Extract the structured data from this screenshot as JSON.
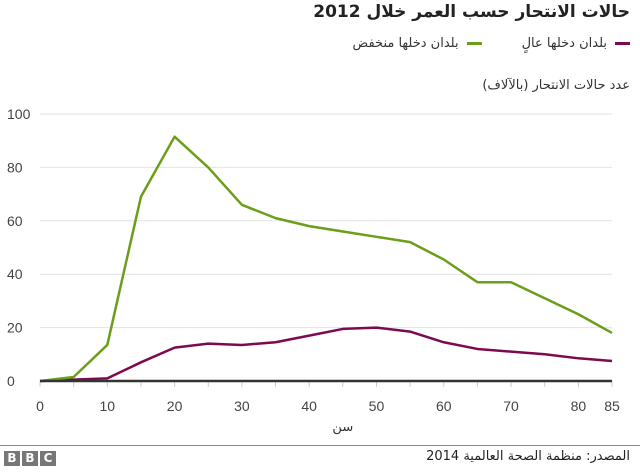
{
  "chart_data": {
    "type": "line",
    "title": "حالات الانتحار حسب العمر خلال 2012",
    "ylabel": "عدد حالات الانتحار (بالآلاف)",
    "xlabel": "سن",
    "x": [
      0,
      5,
      10,
      15,
      20,
      25,
      30,
      35,
      40,
      45,
      50,
      55,
      60,
      65,
      70,
      75,
      80,
      85
    ],
    "xticks": [
      0,
      10,
      20,
      30,
      40,
      50,
      60,
      70,
      80,
      85
    ],
    "yticks": [
      0,
      20,
      40,
      60,
      80,
      100
    ],
    "xlim": [
      0,
      85
    ],
    "ylim": [
      0,
      100
    ],
    "grid": true,
    "legend_position": "top-right",
    "series": [
      {
        "name": "بلدان دخلها عالٍ",
        "color": "#7d0a50",
        "values": [
          0,
          0.5,
          1,
          7,
          12.5,
          14,
          13.5,
          14.5,
          17,
          19.5,
          20,
          18.5,
          14.5,
          12,
          11,
          10,
          8.5,
          7.5
        ]
      },
      {
        "name": "بلدان دخلها منخفض",
        "color": "#6b9e1a",
        "values": [
          0,
          1.5,
          13.5,
          69,
          91.5,
          80,
          66,
          61,
          58,
          56,
          54,
          52,
          45.5,
          37,
          37,
          31,
          25,
          18
        ]
      }
    ]
  },
  "footer": {
    "source": "المصدر: منظمة الصحة العالمية 2014",
    "logo": "BBC"
  }
}
